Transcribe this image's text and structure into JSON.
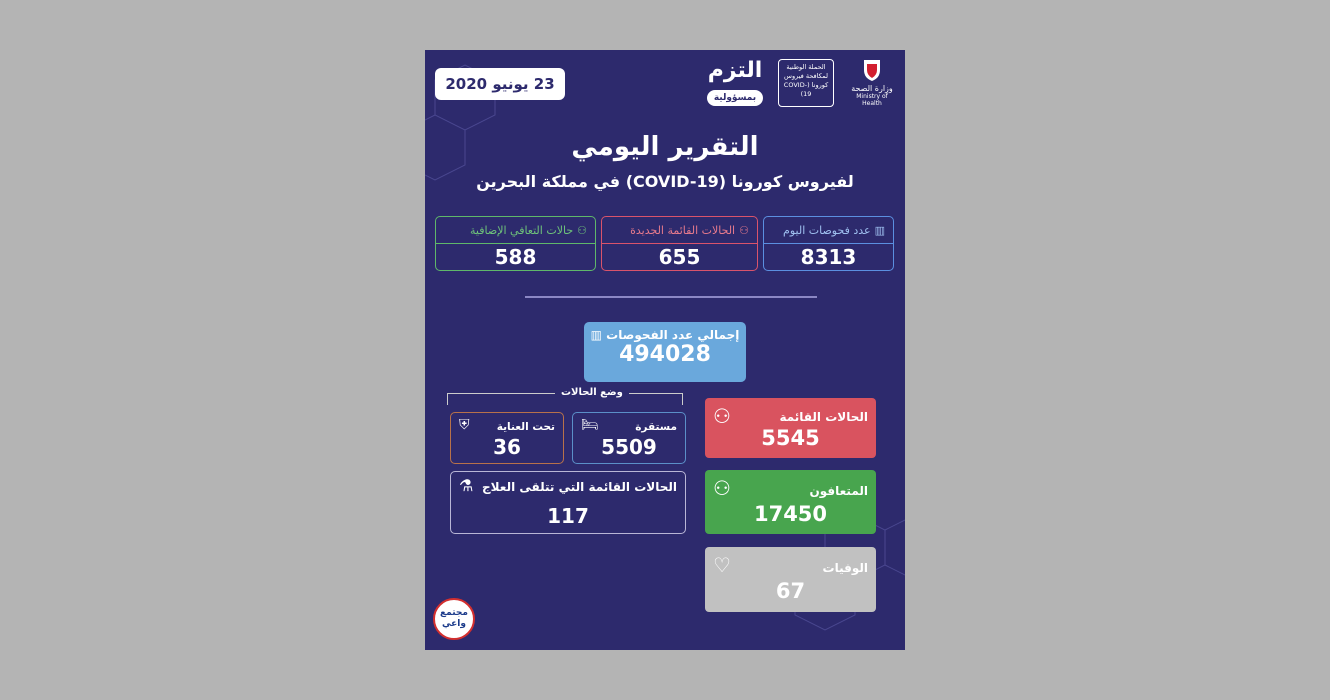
{
  "header": {
    "date": "23 يونيو 2020",
    "slogan": "التزم",
    "slogan_sub": "بمسؤولية",
    "campaign": "الحملة الوطنية لمكافحة فيروس كورونا (COVID-19)",
    "ministry_ar": "وزارة الصحة",
    "ministry_en": "Ministry of Health"
  },
  "title": "التقرير اليومي",
  "subtitle": "لفيروس كورونا (COVID-19) في مملكة البحرين",
  "daily": [
    {
      "label": "عدد فحوصات اليوم",
      "value": "8313",
      "color": "#5b8fe0",
      "icon": "test-tubes-icon"
    },
    {
      "label": "الحالات القائمة الجديدة",
      "value": "655",
      "color": "#d9536b",
      "icon": "person-virus-icon"
    },
    {
      "label": "حالات التعافي الإضافية",
      "value": "588",
      "color": "#5fb86a",
      "icon": "person-recovery-icon"
    }
  ],
  "total_tests": {
    "label": "إجمالي عدد الفحوصات",
    "value": "494028",
    "color": "#6aa8dc"
  },
  "active": {
    "label": "الحالات القائمة",
    "value": "5545",
    "color": "#d9535f"
  },
  "recovered": {
    "label": "المتعافون",
    "value": "17450",
    "color": "#48a54e"
  },
  "deaths": {
    "label": "الوفيات",
    "value": "67",
    "color": "#c1c1c1"
  },
  "status": {
    "heading": "وضع الحالات",
    "stable": {
      "label": "مستقرة",
      "value": "5509",
      "color": "#5b8fc8"
    },
    "icu": {
      "label": "تحت العناية",
      "value": "36",
      "color": "#b7714a"
    },
    "treatment": {
      "label": "الحالات القائمة التي تتلقى العلاج",
      "value": "117",
      "color": "#b9b6d6"
    }
  },
  "footer": {
    "badge": "مجتمع واعي"
  }
}
